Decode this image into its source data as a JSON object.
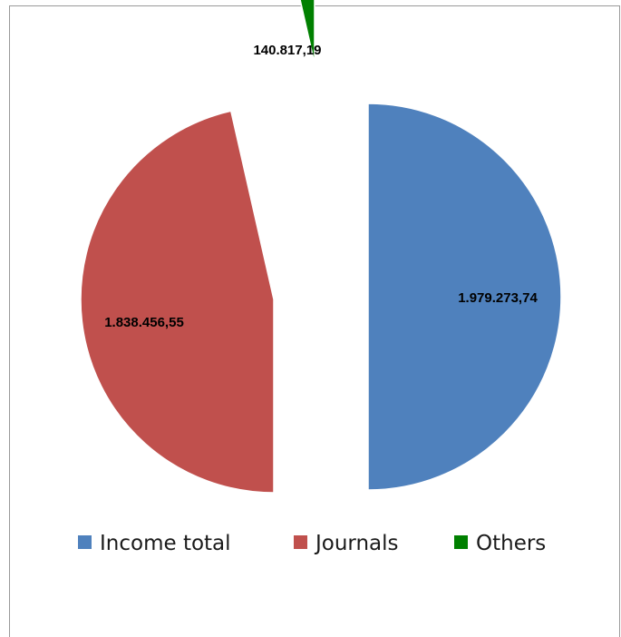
{
  "chart_data": {
    "type": "pie",
    "title": "",
    "series": [
      {
        "name": "",
        "values": [
          1979273.74,
          1838456.55,
          140817.19
        ]
      }
    ],
    "categories": [
      "Income total",
      "Journals",
      "Others"
    ],
    "data_labels": [
      "1.979.273,74",
      "1.838.456,55",
      "140.817,19"
    ],
    "colors": [
      "#4f81bd",
      "#c0504d",
      "#008000"
    ],
    "exploded": true,
    "legend_position": "bottom",
    "start_angle_deg": 0,
    "direction": "clockwise"
  }
}
